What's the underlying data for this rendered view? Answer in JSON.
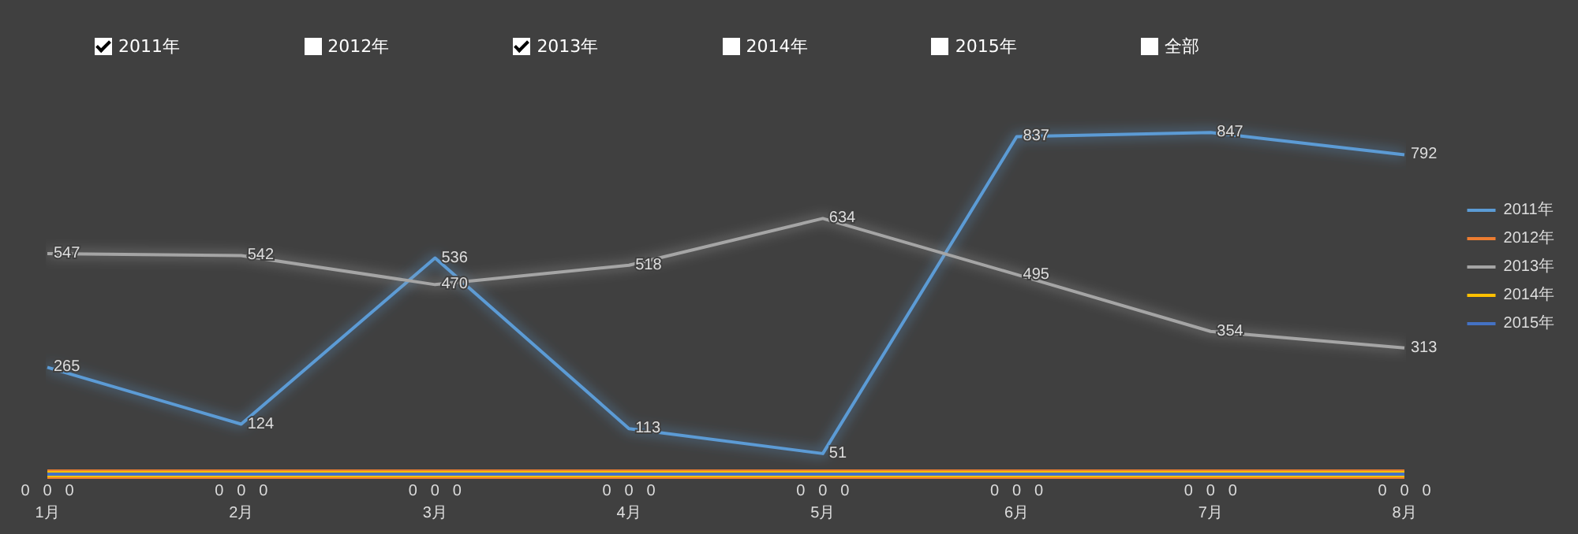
{
  "chart_data": {
    "type": "line",
    "categories": [
      "1月",
      "2月",
      "3月",
      "4月",
      "5月",
      "6月",
      "7月",
      "8月"
    ],
    "series": [
      {
        "name": "2011年",
        "color": "#5b9bd5",
        "values": [
          265,
          124,
          536,
          113,
          51,
          837,
          847,
          792
        ]
      },
      {
        "name": "2012年",
        "color": "#ed7d31",
        "values": [
          0,
          0,
          0,
          0,
          0,
          0,
          0,
          0
        ]
      },
      {
        "name": "2013年",
        "color": "#a5a5a5",
        "values": [
          547,
          542,
          470,
          518,
          634,
          495,
          354,
          313
        ]
      },
      {
        "name": "2014年",
        "color": "#ffc000",
        "values": [
          0,
          0,
          0,
          0,
          0,
          0,
          0,
          0
        ]
      },
      {
        "name": "2015年",
        "color": "#4472c4",
        "values": [
          0,
          0,
          0,
          0,
          0,
          0,
          0,
          0
        ]
      }
    ],
    "annotations": [
      "2011年",
      "2012年",
      "2013年",
      "2014年",
      "2015年",
      "全部"
    ],
    "data_labels": true,
    "legend": "right",
    "grid": false,
    "marker": "none",
    "tick_labels": "x"
  }
}
